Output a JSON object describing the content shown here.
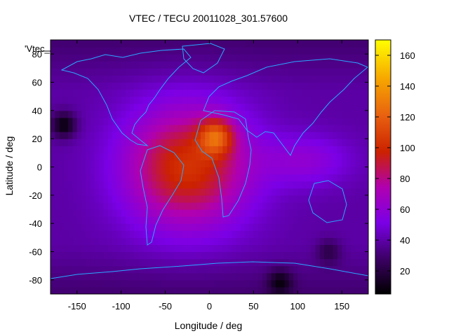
{
  "chart_data": {
    "type": "heatmap",
    "title": "VTEC / TECU 20011028_301.57600",
    "key_label": "'Vtec_",
    "xlabel": "Longitude / deg",
    "ylabel": "Latitude / deg",
    "xlim": [
      -180,
      180
    ],
    "ylim": [
      -90,
      90
    ],
    "x_ticks": [
      -150,
      -100,
      -50,
      0,
      50,
      100,
      150
    ],
    "y_ticks": [
      80,
      60,
      40,
      20,
      0,
      -20,
      -40,
      -60,
      -80
    ],
    "colorbar": {
      "range": [
        5,
        170
      ],
      "ticks": [
        20,
        40,
        60,
        80,
        100,
        120,
        140,
        160
      ]
    },
    "grid": false,
    "palette": [
      "#000000",
      "#3d0066",
      "#7b00e6",
      "#b000b0",
      "#cc2200",
      "#e86010",
      "#f7a800",
      "#ffff00"
    ],
    "features": {
      "peak": {
        "lon": 8,
        "lat": 22,
        "value": 155,
        "note": "equatorial anomaly crest over Africa"
      },
      "main_region": {
        "lon": -25,
        "lat": 0,
        "value": 105
      },
      "minima": [
        {
          "lon": -165,
          "lat": 30,
          "value": 8
        },
        {
          "lon": 80,
          "lat": -82,
          "value": 8
        },
        {
          "lon": 135,
          "lat": -60,
          "value": 22
        }
      ],
      "background_value": 40
    }
  }
}
